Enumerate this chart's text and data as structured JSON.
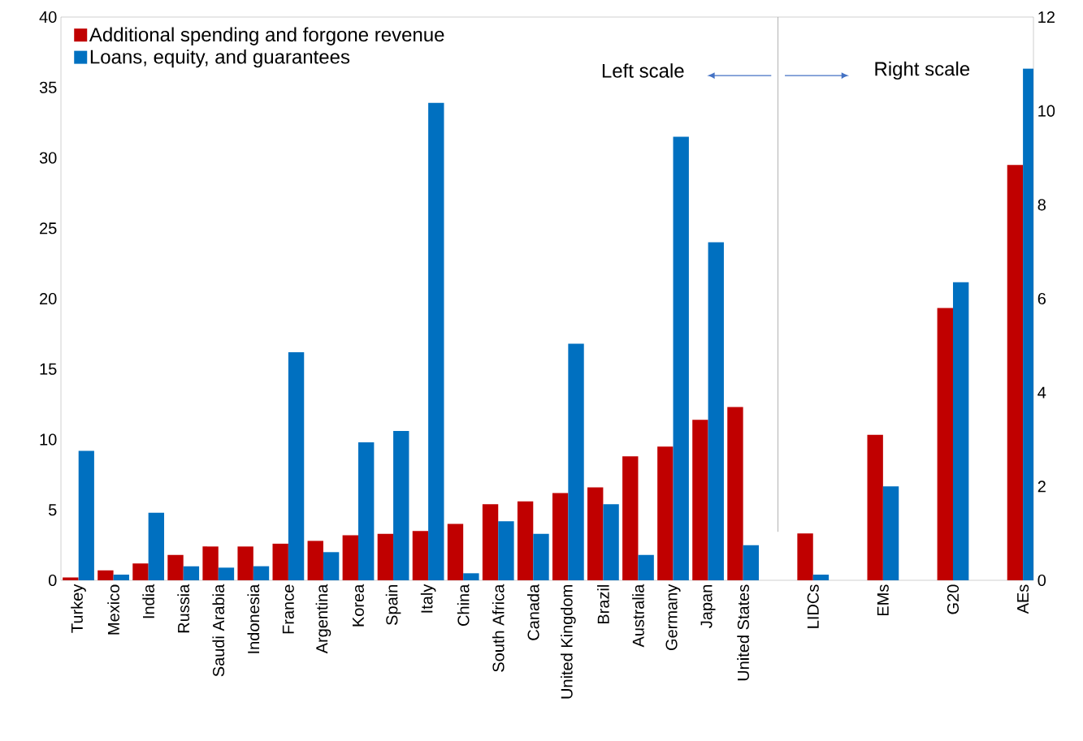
{
  "chart_data": {
    "type": "bar",
    "categories": [
      "Turkey",
      "Mexico",
      "India",
      "Russia",
      "Saudi Arabia",
      "Indonesia",
      "France",
      "Argentina",
      "Korea",
      "Spain",
      "Italy",
      "China",
      "South Africa",
      "Canada",
      "United Kingdom",
      "Brazil",
      "Australia",
      "Germany",
      "Japan",
      "United States",
      null,
      "LIDCs",
      null,
      "EMs",
      null,
      "G20",
      null,
      "AEs"
    ],
    "series": [
      {
        "name": "Additional spending and forgone revenue",
        "color": "#c00000",
        "values": [
          0.2,
          0.7,
          1.2,
          1.8,
          2.4,
          2.4,
          2.6,
          2.8,
          3.2,
          3.3,
          3.5,
          4.0,
          5.4,
          5.6,
          6.2,
          6.6,
          8.8,
          9.5,
          11.4,
          12.3,
          null,
          null,
          null,
          null,
          null,
          null,
          null,
          null
        ]
      },
      {
        "name": "Loans, equity, and guarantees",
        "color": "#0070c0",
        "values": [
          9.2,
          0.4,
          4.8,
          1.0,
          0.9,
          1.0,
          16.2,
          2.0,
          9.8,
          10.6,
          33.9,
          0.5,
          4.2,
          3.3,
          16.8,
          5.4,
          1.8,
          31.5,
          24.0,
          2.5,
          null,
          null,
          null,
          null,
          null,
          null,
          null,
          null
        ]
      },
      {
        "color": "#c00000",
        "axis": "y2",
        "values": [
          null,
          null,
          null,
          null,
          null,
          null,
          null,
          null,
          null,
          null,
          null,
          null,
          null,
          null,
          null,
          null,
          null,
          null,
          null,
          null,
          null,
          1.0,
          null,
          3.1,
          null,
          5.8,
          null,
          8.85
        ]
      },
      {
        "color": "#0070c0",
        "axis": "y2",
        "values": [
          null,
          null,
          null,
          null,
          null,
          null,
          null,
          null,
          null,
          null,
          null,
          null,
          null,
          null,
          null,
          null,
          null,
          null,
          null,
          null,
          null,
          0.12,
          null,
          2.0,
          null,
          6.35,
          null,
          10.9
        ]
      }
    ],
    "ylim": [
      0,
      40
    ],
    "yticks": [
      0,
      5,
      10,
      15,
      20,
      25,
      30,
      35,
      40
    ],
    "y2lim": [
      0,
      12
    ],
    "y2ticks": [
      0,
      2,
      4,
      6,
      8,
      10,
      12
    ],
    "annotations": [
      "Left scale",
      "Right scale"
    ],
    "legend": "top left"
  }
}
